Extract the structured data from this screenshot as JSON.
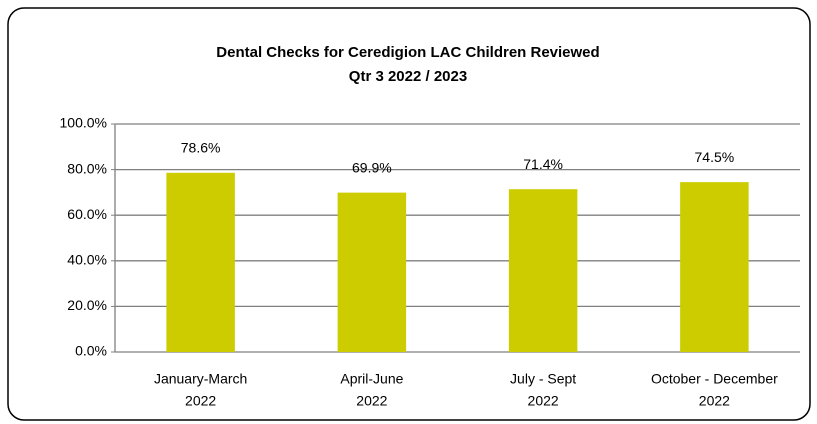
{
  "chart_data": {
    "type": "bar",
    "title": "Dental Checks for Ceredigion LAC Children Reviewed",
    "subtitle": "Qtr 3 2022 / 2023",
    "categories": [
      [
        "January-March",
        "2022"
      ],
      [
        "April-June",
        "2022"
      ],
      [
        "July - Sept",
        "2022"
      ],
      [
        "October - December",
        "2022"
      ]
    ],
    "values": [
      78.6,
      69.9,
      71.4,
      74.5
    ],
    "value_labels": [
      "78.6%",
      "69.9%",
      "71.4%",
      "74.5%"
    ],
    "color": "#cccc00",
    "ylim": [
      0,
      100
    ],
    "yticks": [
      {
        "value": 0,
        "label": "0.0%"
      },
      {
        "value": 20,
        "label": "20.0%"
      },
      {
        "value": 40,
        "label": "40.0%"
      },
      {
        "value": 60,
        "label": "60.0%"
      },
      {
        "value": 80,
        "label": "80.0%"
      },
      {
        "value": 100,
        "label": "100.0%"
      }
    ],
    "grid": true
  }
}
